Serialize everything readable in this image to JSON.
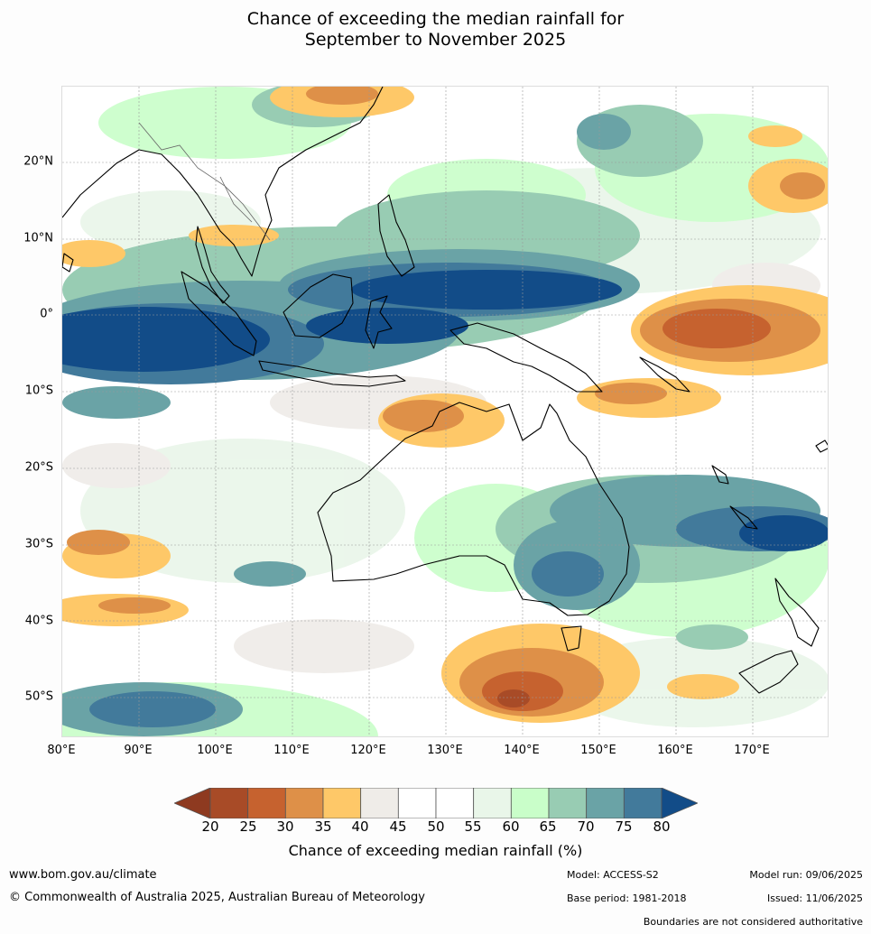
{
  "title_line1": "Chance of exceeding the median rainfall for",
  "title_line2": "September to November 2025",
  "map": {
    "lon_ticks": [
      "80°E",
      "90°E",
      "100°E",
      "110°E",
      "120°E",
      "130°E",
      "140°E",
      "150°E",
      "160°E",
      "170°E"
    ],
    "lat_ticks": [
      "20°N",
      "10°N",
      "0°",
      "10°S",
      "20°S",
      "30°S",
      "40°S",
      "50°S"
    ],
    "background_color": "#ffffff"
  },
  "colorbar": {
    "labels": [
      "20",
      "25",
      "30",
      "35",
      "40",
      "45",
      "50",
      "55",
      "60",
      "65",
      "70",
      "75",
      "80"
    ],
    "colors": [
      "#8e3a20",
      "#a84b27",
      "#c6622f",
      "#de9048",
      "#fec868",
      "#efece8",
      "#ffffff",
      "#ffffff",
      "#e9f6e9",
      "#c9fec9",
      "#98ccb3",
      "#6aa3a6",
      "#427a9b",
      "#124c88"
    ],
    "title": "Chance of exceeding median rainfall (%)"
  },
  "footer": {
    "website": "www.bom.gov.au/climate",
    "copyright": "© Commonwealth of Australia 2025, Australian Bureau of Meteorology",
    "model": "Model: ACCESS-S2",
    "base_period": "Base period: 1981-2018",
    "model_run": "Model run: 09/06/2025",
    "issued": "Issued: 11/06/2025",
    "disclaimer": "Boundaries are not considered authoritative"
  }
}
